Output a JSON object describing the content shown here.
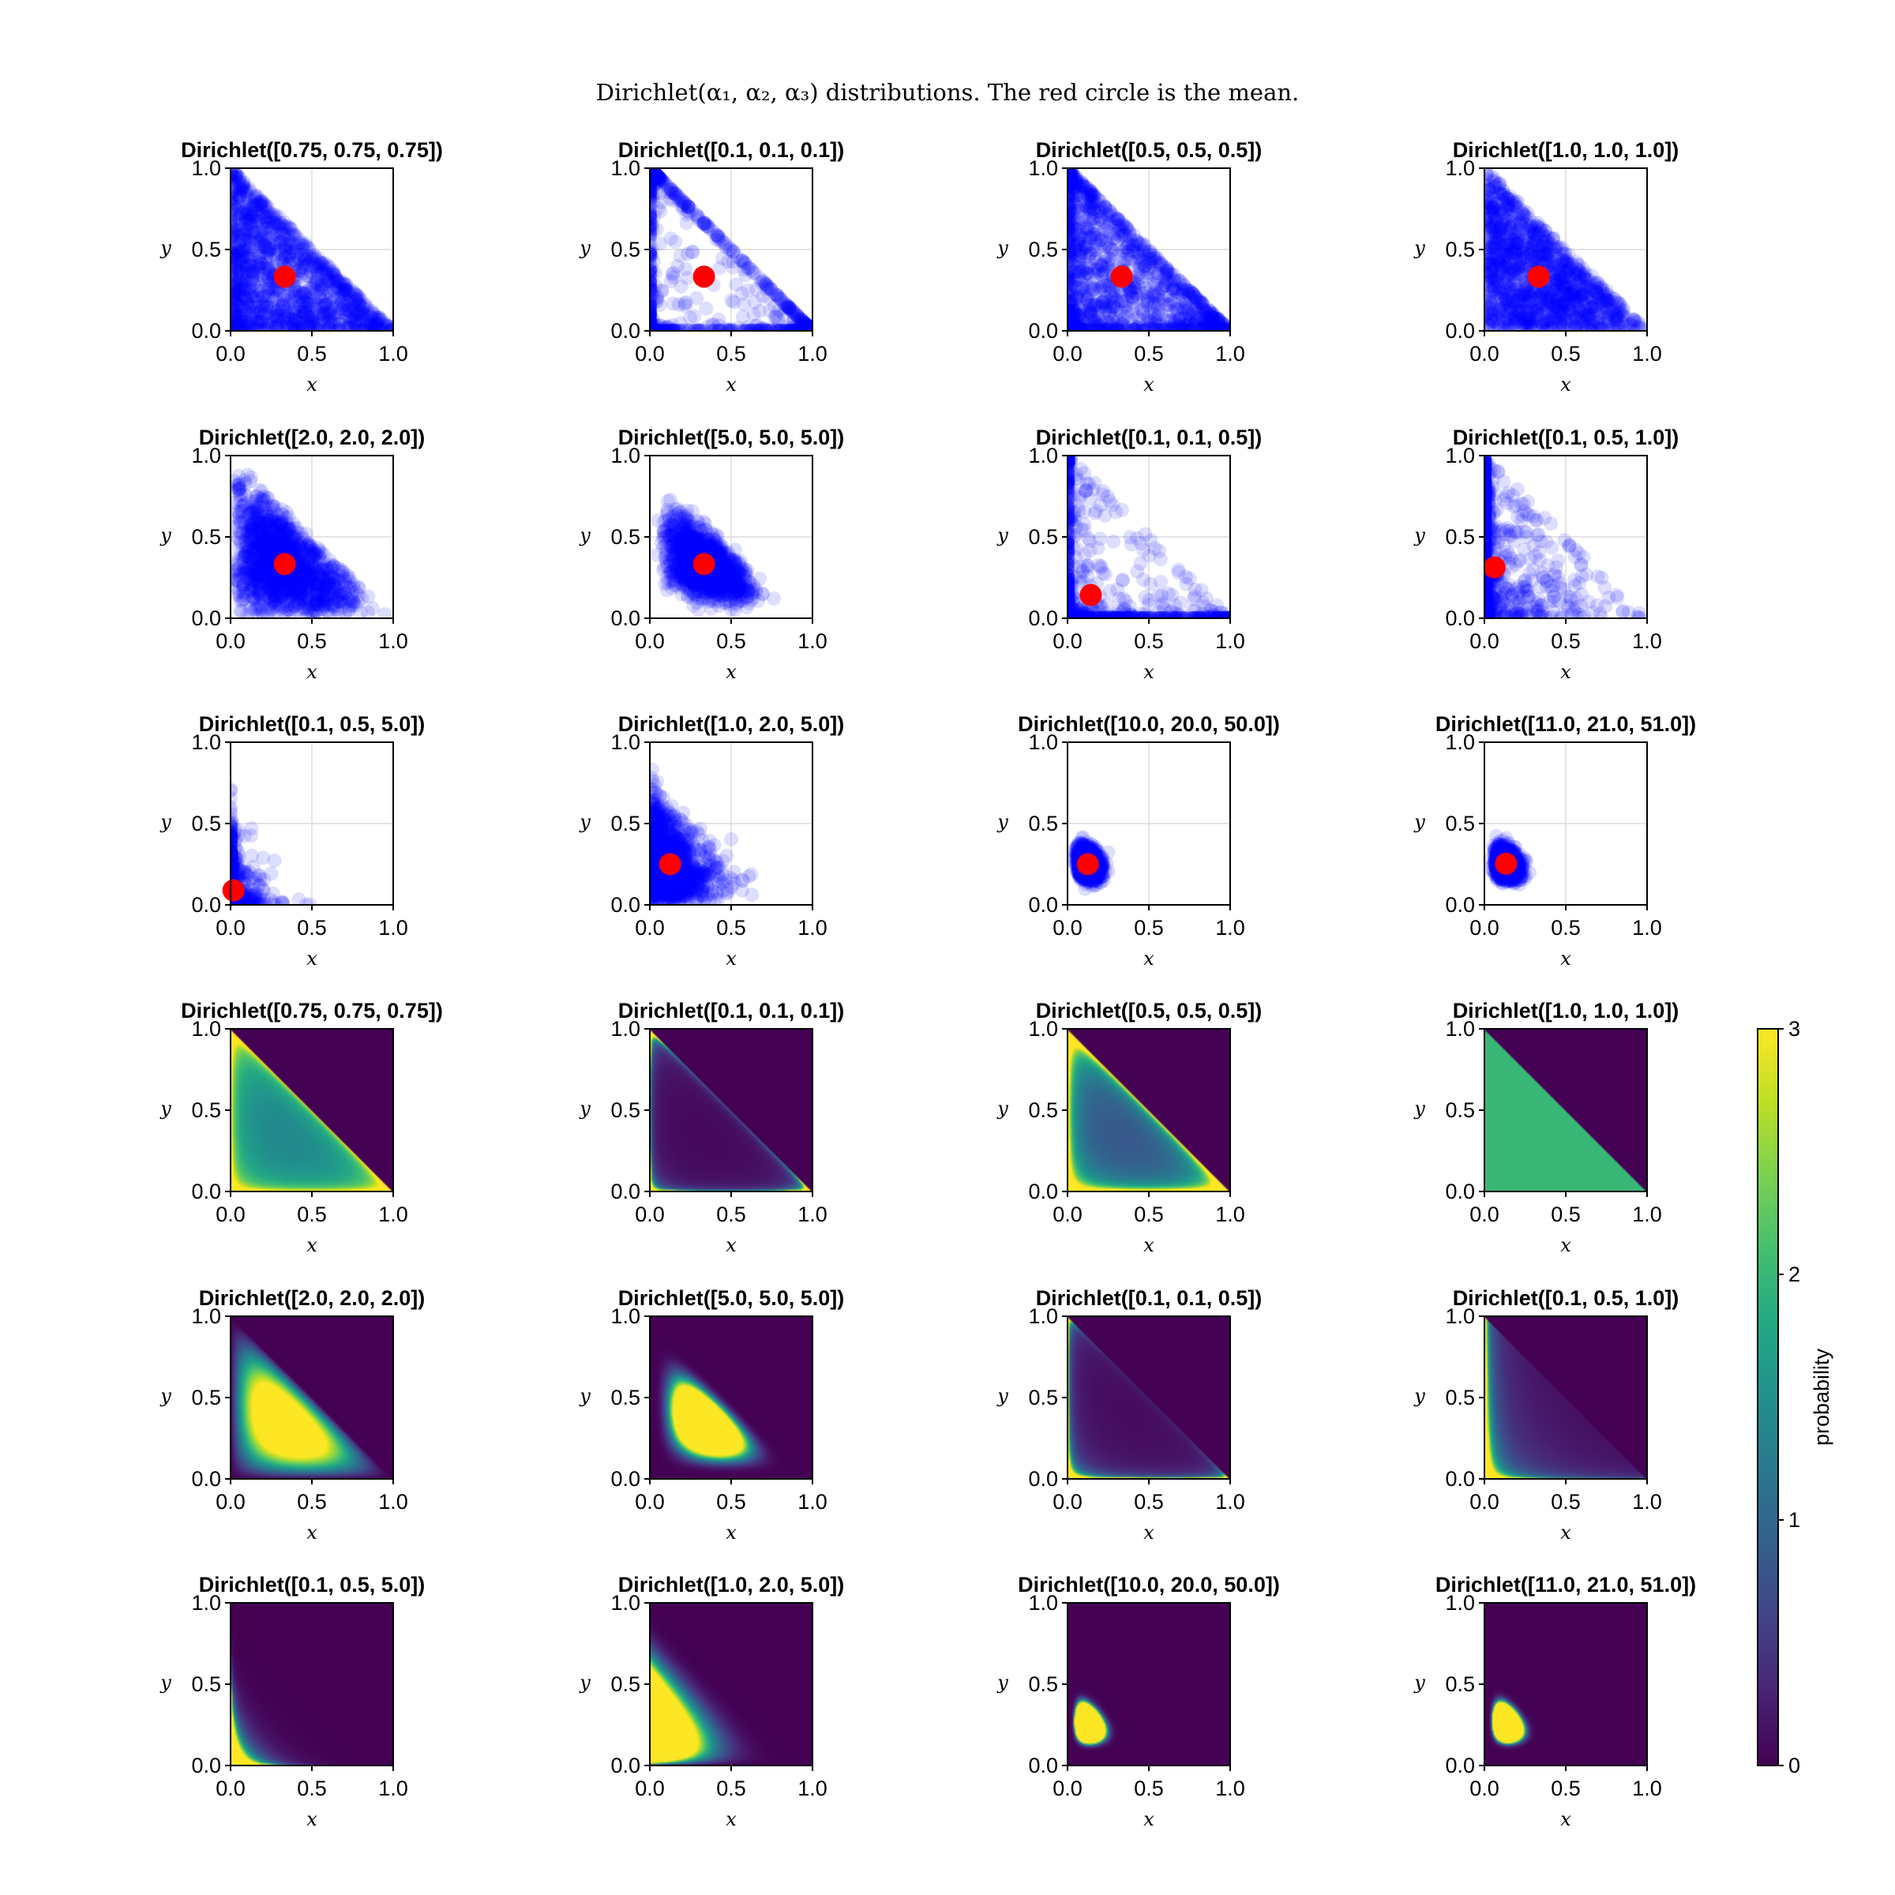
{
  "figure": {
    "suptitle": "Dirichlet(α₁, α₂, α₃) distributions. The red circle is the mean."
  },
  "chart_data": {
    "type": "scatter",
    "description_rows": "rows 1-3: samples (blue points) with mean (red circle); rows 4-6: probability density heatmaps",
    "alphas": [
      [
        0.75,
        0.75,
        0.75
      ],
      [
        0.1,
        0.1,
        0.1
      ],
      [
        0.5,
        0.5,
        0.5
      ],
      [
        1.0,
        1.0,
        1.0
      ],
      [
        2.0,
        2.0,
        2.0
      ],
      [
        5.0,
        5.0,
        5.0
      ],
      [
        0.1,
        0.1,
        0.5
      ],
      [
        0.1,
        0.5,
        1.0
      ],
      [
        0.1,
        0.5,
        5.0
      ],
      [
        1.0,
        2.0,
        5.0
      ],
      [
        10.0,
        20.0,
        50.0
      ],
      [
        11.0,
        21.0,
        51.0
      ]
    ],
    "titles": [
      "Dirichlet([0.75, 0.75, 0.75])",
      "Dirichlet([0.1, 0.1, 0.1])",
      "Dirichlet([0.5, 0.5, 0.5])",
      "Dirichlet([1.0, 1.0, 1.0])",
      "Dirichlet([2.0, 2.0, 2.0])",
      "Dirichlet([5.0, 5.0, 5.0])",
      "Dirichlet([0.1, 0.1, 0.5])",
      "Dirichlet([0.1, 0.5, 1.0])",
      "Dirichlet([0.1, 0.5, 5.0])",
      "Dirichlet([1.0, 2.0, 5.0])",
      "Dirichlet([10.0, 20.0, 50.0])",
      "Dirichlet([11.0, 21.0, 51.0])"
    ],
    "means": [
      [
        0.333,
        0.333
      ],
      [
        0.333,
        0.333
      ],
      [
        0.333,
        0.333
      ],
      [
        0.333,
        0.333
      ],
      [
        0.333,
        0.333
      ],
      [
        0.333,
        0.333
      ],
      [
        0.143,
        0.143
      ],
      [
        0.0625,
        0.3125
      ],
      [
        0.018,
        0.089
      ],
      [
        0.125,
        0.25
      ],
      [
        0.125,
        0.25
      ],
      [
        0.133,
        0.253
      ]
    ],
    "xlabel": "x",
    "ylabel": "y",
    "xlim": [
      0.0,
      1.0
    ],
    "ylim": [
      0.0,
      1.0
    ],
    "xticks": [
      "0.0",
      "0.5",
      "1.0"
    ],
    "yticks": [
      "0.0",
      "0.5",
      "1.0"
    ],
    "grid": true,
    "colorbar": {
      "label": "probability",
      "range": [
        0,
        3
      ],
      "ticks": [
        "0",
        "1",
        "2",
        "3"
      ],
      "colormap": "viridis"
    },
    "colors": {
      "samples": "#0000ff",
      "mean": "#ff0000"
    }
  }
}
